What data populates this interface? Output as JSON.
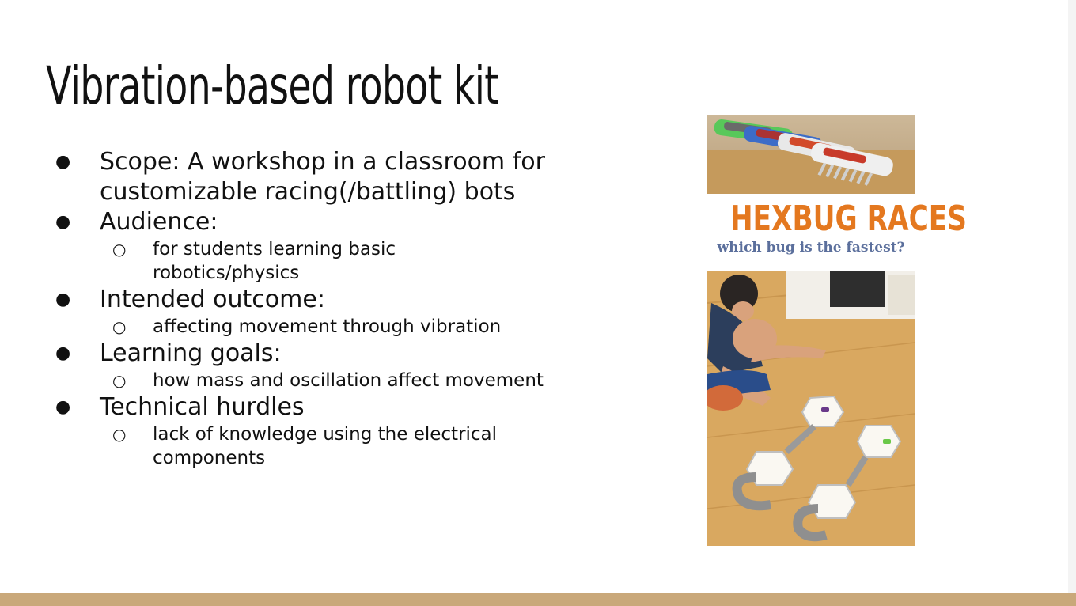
{
  "slide": {
    "title": "Vibration-based robot kit",
    "bullets": [
      {
        "text": "Scope: A workshop in a classroom for customizable racing(/battling) bots",
        "sub": []
      },
      {
        "text": "Audience:",
        "sub": [
          "for students learning basic robotics/physics"
        ]
      },
      {
        "text": "Intended outcome:",
        "sub": [
          "affecting movement through vibration"
        ]
      },
      {
        "text": "Learning goals:",
        "sub": [
          "how mass and oscillation affect movement"
        ]
      },
      {
        "text": "Technical hurdles",
        "sub": [
          "lack of knowledge using the electrical components"
        ]
      }
    ]
  },
  "figure": {
    "heading": "HEXBUG RACES",
    "subheading": "which bug is the fastest?",
    "colors": {
      "heading": "#e4781f",
      "subheading": "#5b6f9c",
      "floor": "#d9a860"
    }
  },
  "footer": {
    "color": "#c9a87a"
  }
}
